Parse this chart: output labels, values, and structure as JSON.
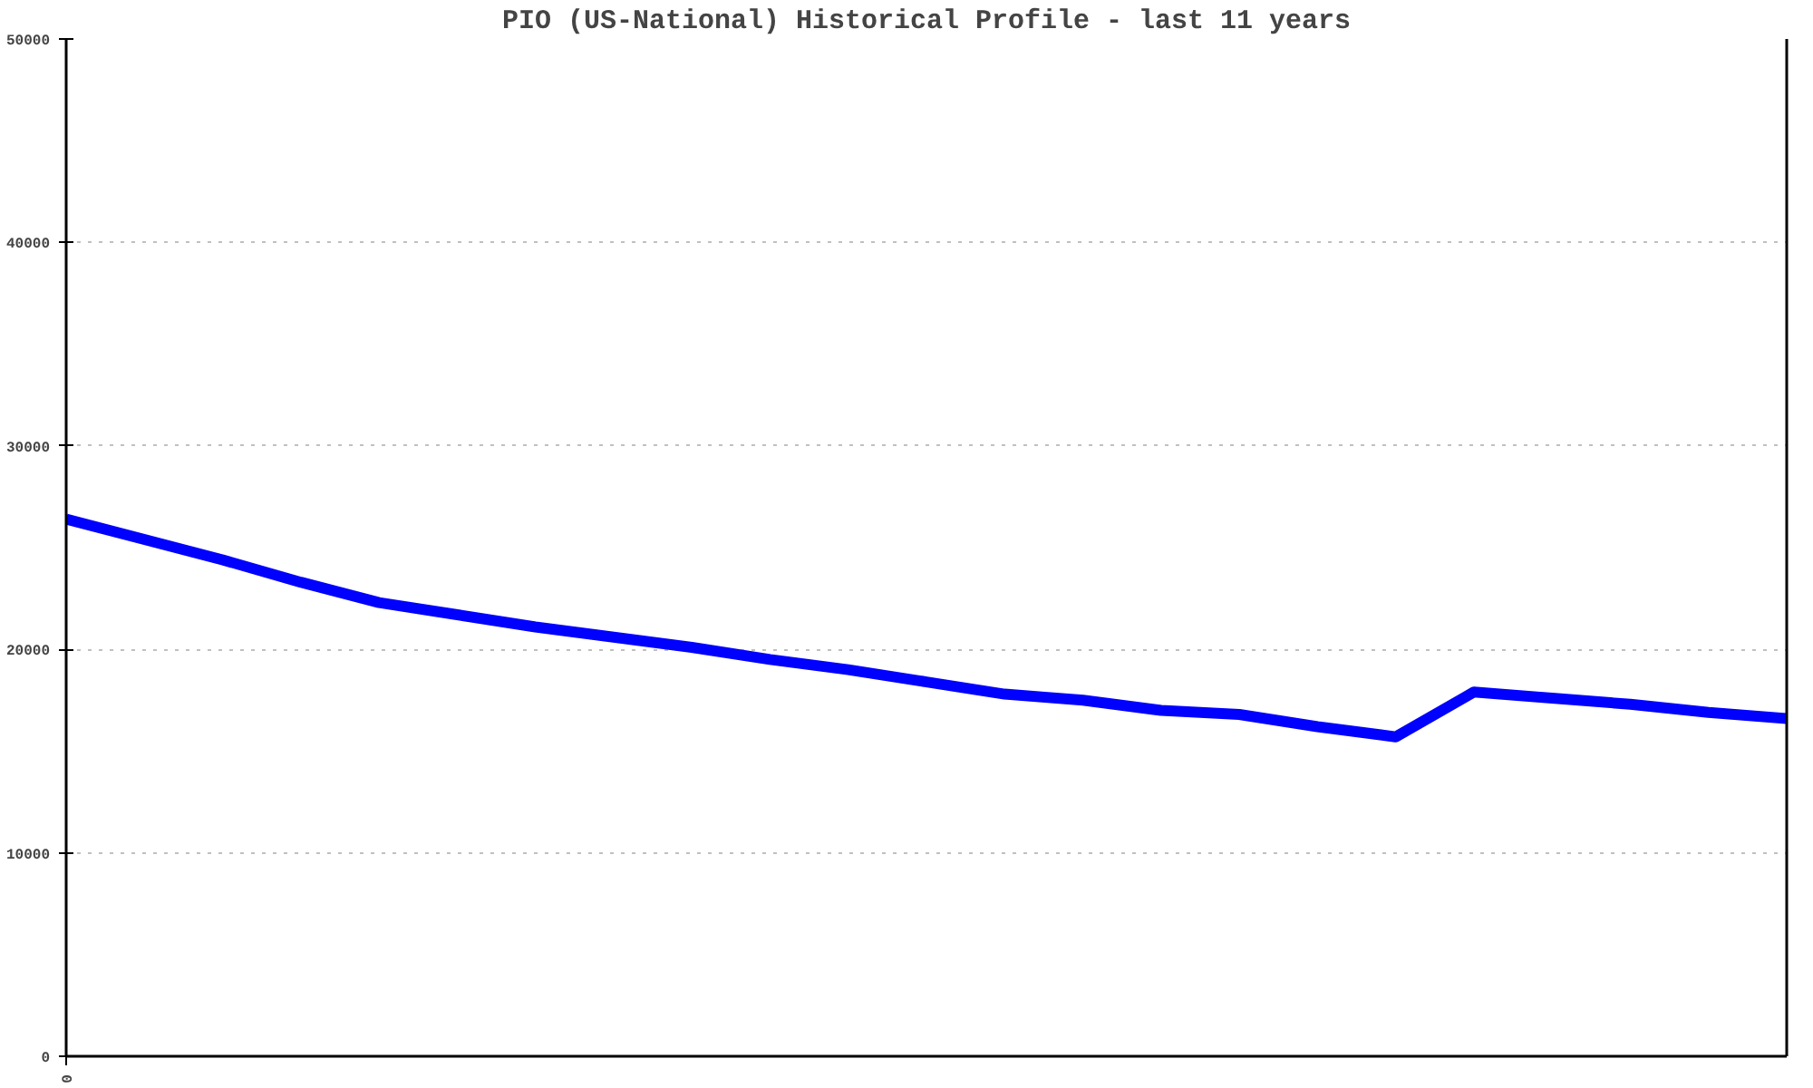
{
  "chart_data": {
    "type": "line",
    "title": "PIO (US-National) Historical Profile - last 11 years",
    "categories": [
      "0",
      null,
      null,
      null,
      null,
      null,
      null,
      null,
      null,
      null,
      null,
      null,
      null,
      null,
      null,
      null,
      null,
      null,
      null,
      null,
      null,
      null,
      null
    ],
    "series": [
      {
        "color": "#0000ff",
        "values": [
          26400,
          25400,
          24400,
          23300,
          22300,
          21700,
          21100,
          20600,
          20100,
          19500,
          19000,
          18400,
          17800,
          17500,
          17000,
          16800,
          16200,
          15700,
          17900,
          17600,
          17300,
          16900,
          16600
        ]
      }
    ],
    "ylim": [
      0,
      50000
    ],
    "yticks": [
      0,
      10000,
      20000,
      30000,
      40000,
      50000
    ],
    "grid": "y"
  }
}
